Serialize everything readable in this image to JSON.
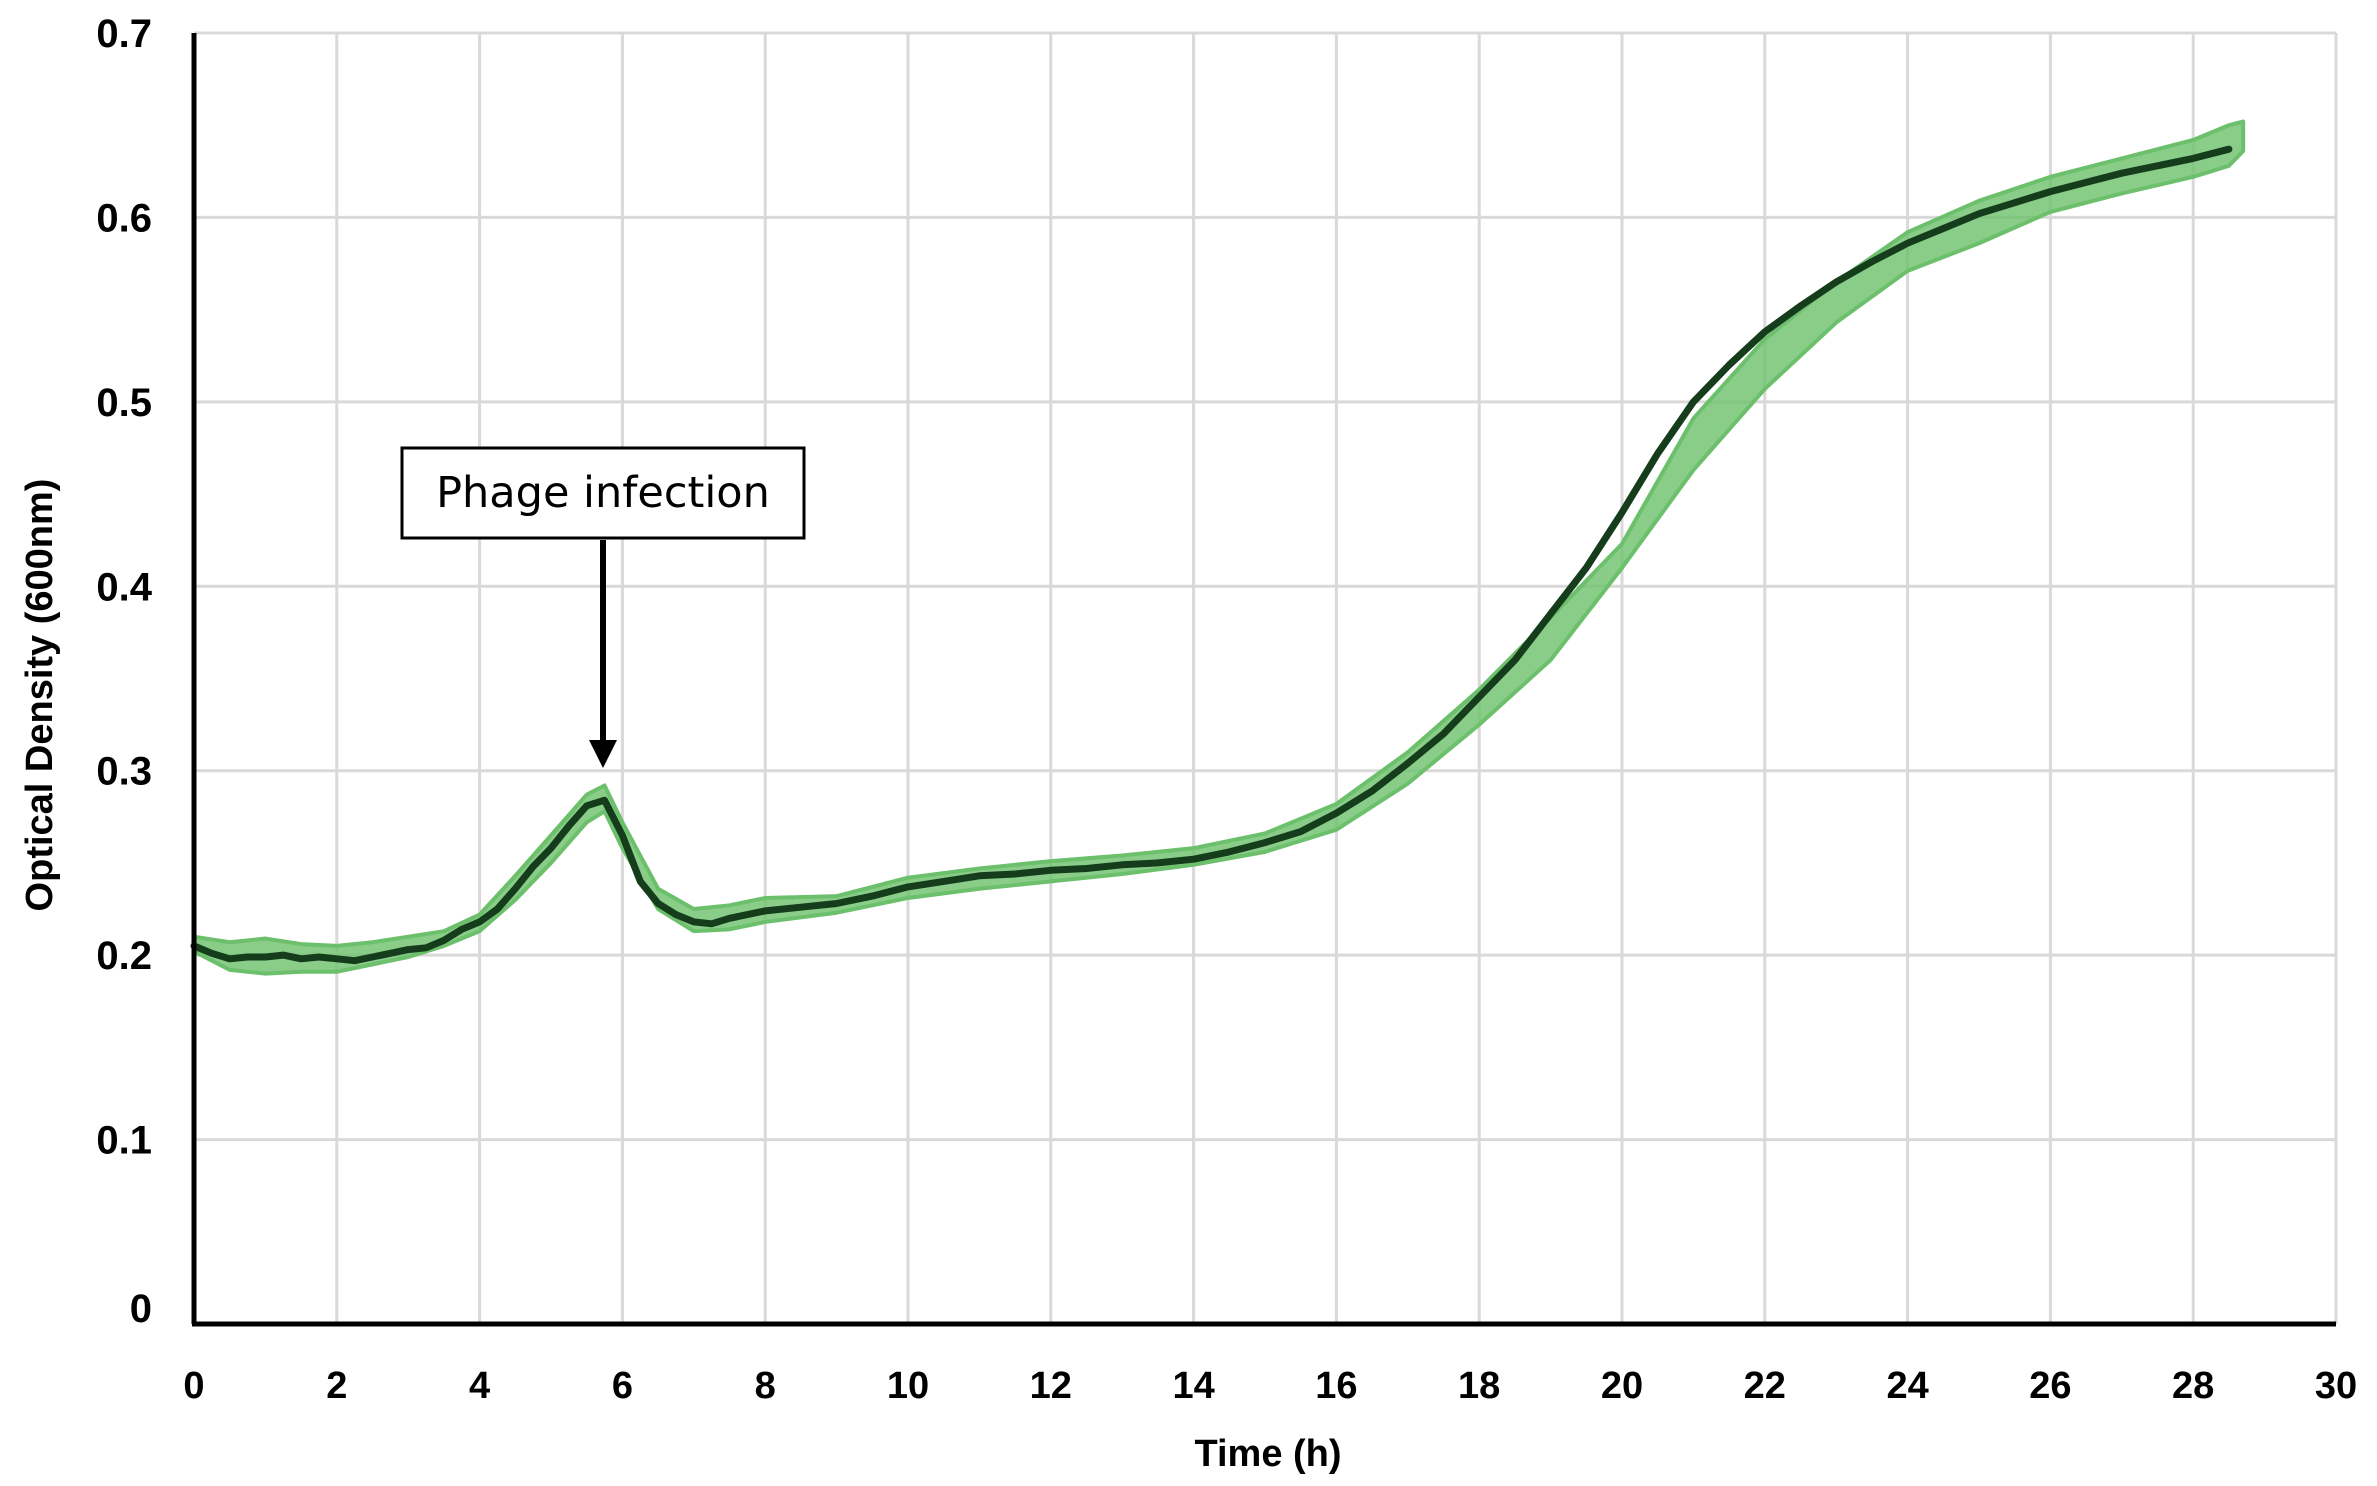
{
  "chart_data": {
    "type": "line",
    "title": "",
    "xlabel": "Time (h)",
    "ylabel": "Optical Density (600nm)",
    "xlim": [
      0,
      30
    ],
    "ylim": [
      0,
      0.7
    ],
    "x_ticks": [
      0,
      2,
      4,
      6,
      8,
      10,
      12,
      14,
      16,
      18,
      20,
      22,
      24,
      26,
      28,
      30
    ],
    "y_ticks": [
      0,
      0.1,
      0.2,
      0.3,
      0.4,
      0.5,
      0.6,
      0.7
    ],
    "x_tick_labels": [
      "0",
      "2",
      "4",
      "6",
      "8",
      "10",
      "12",
      "14",
      "16",
      "18",
      "20",
      "22",
      "24",
      "26",
      "28",
      "30"
    ],
    "y_tick_labels": [
      "0",
      "0.1",
      "0.2",
      "0.3",
      "0.4",
      "0.5",
      "0.6",
      "0.7"
    ],
    "grid": true,
    "legend": "none",
    "colors": {
      "line": "#153d1c",
      "band": "#6cc06c"
    },
    "series": [
      {
        "type": "line",
        "x": [
          0,
          0.25,
          0.5,
          0.75,
          1,
          1.25,
          1.5,
          1.75,
          2,
          2.25,
          2.5,
          2.75,
          3,
          3.25,
          3.5,
          3.75,
          4,
          4.25,
          4.5,
          4.75,
          5,
          5.25,
          5.5,
          5.75,
          6,
          6.25,
          6.5,
          6.75,
          7,
          7.25,
          7.5,
          8,
          8.5,
          9,
          9.5,
          10,
          10.5,
          11,
          11.5,
          12,
          12.5,
          13,
          13.5,
          14,
          14.5,
          15,
          15.5,
          16,
          16.5,
          17,
          17.5,
          18,
          18.5,
          19,
          19.5,
          20,
          20.5,
          21,
          21.5,
          22,
          22.5,
          23,
          23.5,
          24,
          24.5,
          25,
          25.5,
          26,
          26.5,
          27,
          27.5,
          28,
          28.5
        ],
        "y": [
          0.205,
          0.201,
          0.198,
          0.199,
          0.199,
          0.2,
          0.198,
          0.199,
          0.198,
          0.197,
          0.199,
          0.201,
          0.203,
          0.204,
          0.208,
          0.214,
          0.218,
          0.225,
          0.236,
          0.248,
          0.258,
          0.27,
          0.281,
          0.284,
          0.265,
          0.24,
          0.228,
          0.222,
          0.218,
          0.217,
          0.22,
          0.224,
          0.226,
          0.228,
          0.232,
          0.237,
          0.24,
          0.243,
          0.244,
          0.246,
          0.247,
          0.249,
          0.25,
          0.252,
          0.256,
          0.261,
          0.267,
          0.277,
          0.289,
          0.304,
          0.32,
          0.34,
          0.36,
          0.385,
          0.41,
          0.44,
          0.472,
          0.5,
          0.52,
          0.538,
          0.552,
          0.565,
          0.576,
          0.586,
          0.594,
          0.602,
          0.608,
          0.614,
          0.619,
          0.624,
          0.628,
          0.632,
          0.637
        ]
      },
      {
        "type": "band",
        "x": [
          0,
          0.5,
          1,
          1.5,
          2,
          2.5,
          3,
          3.5,
          4,
          4.5,
          5,
          5.5,
          5.75,
          6,
          6.5,
          7,
          7.5,
          8,
          9,
          10,
          11,
          12,
          13,
          14,
          15,
          16,
          17,
          18,
          19,
          20,
          21,
          22,
          23,
          24,
          25,
          26,
          27,
          28,
          28.5,
          28.7
        ],
        "lower": [
          0.202,
          0.192,
          0.19,
          0.191,
          0.191,
          0.195,
          0.199,
          0.205,
          0.213,
          0.23,
          0.25,
          0.272,
          0.278,
          0.258,
          0.225,
          0.213,
          0.214,
          0.218,
          0.223,
          0.231,
          0.236,
          0.24,
          0.244,
          0.249,
          0.256,
          0.268,
          0.293,
          0.325,
          0.36,
          0.41,
          0.463,
          0.507,
          0.543,
          0.571,
          0.586,
          0.603,
          0.613,
          0.622,
          0.628,
          0.636
        ],
        "upper": [
          0.21,
          0.207,
          0.209,
          0.206,
          0.205,
          0.207,
          0.21,
          0.213,
          0.222,
          0.243,
          0.265,
          0.287,
          0.292,
          0.272,
          0.236,
          0.225,
          0.227,
          0.231,
          0.232,
          0.242,
          0.247,
          0.251,
          0.254,
          0.258,
          0.266,
          0.282,
          0.31,
          0.344,
          0.383,
          0.423,
          0.491,
          0.534,
          0.565,
          0.592,
          0.609,
          0.622,
          0.632,
          0.642,
          0.65,
          0.652
        ]
      }
    ],
    "annotation": {
      "text": "Phage infection",
      "arrow_x": 5.7,
      "arrow_y": 0.302
    }
  }
}
